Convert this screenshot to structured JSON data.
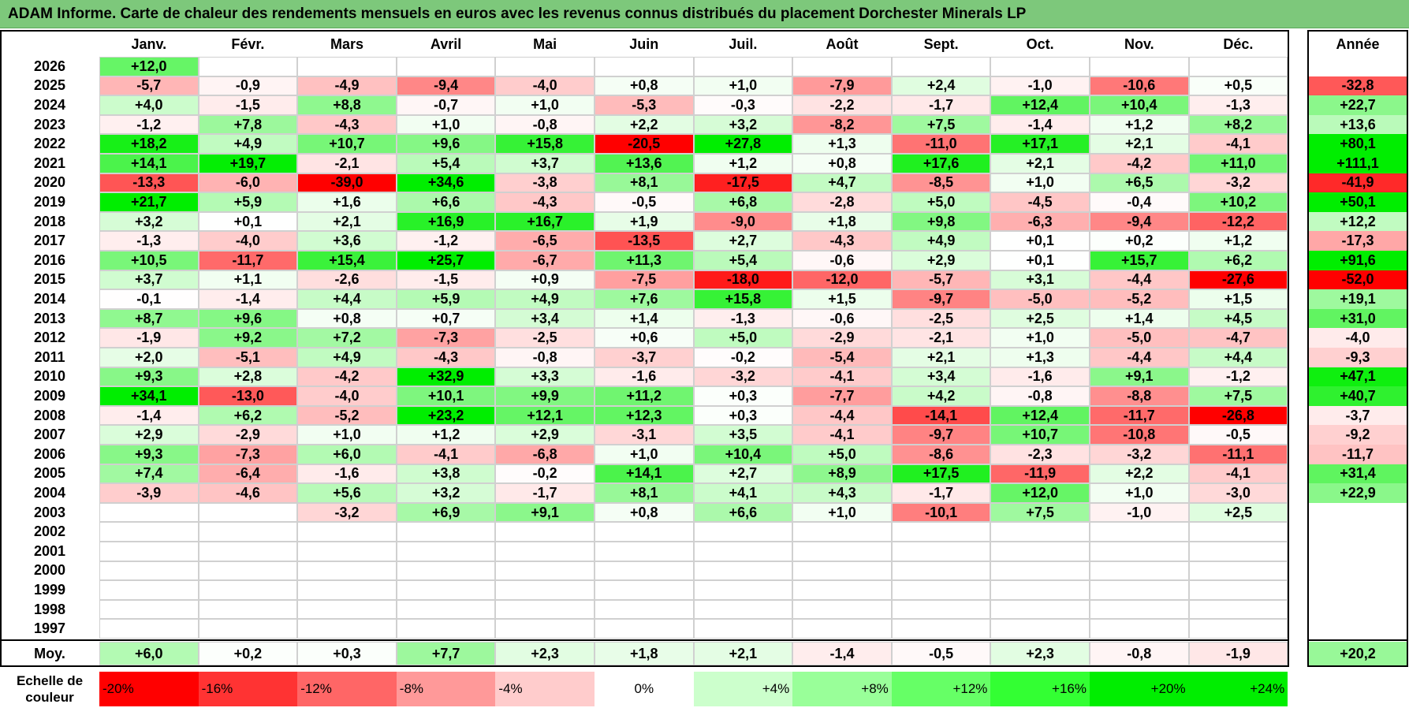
{
  "title": "ADAM Informe. Carte de chaleur des rendements mensuels en euros avec les revenus connus distribués du placement Dorchester Minerals LP",
  "chart_data": {
    "type": "heatmap",
    "title": "ADAM Informe. Carte de chaleur des rendements mensuels en euros avec les revenus connus distribués du placement Dorchester Minerals LP",
    "columns": [
      "Janv.",
      "Févr.",
      "Mars",
      "Avril",
      "Mai",
      "Juin",
      "Juil.",
      "Août",
      "Sept.",
      "Oct.",
      "Nov.",
      "Déc."
    ],
    "year_column_label": "Année",
    "rows": [
      {
        "year": "2026",
        "values": [
          "+12,0",
          "",
          "",
          "",
          "",
          "",
          "",
          "",
          "",
          "",
          "",
          ""
        ],
        "annual": ""
      },
      {
        "year": "2025",
        "values": [
          "-5,7",
          "-0,9",
          "-4,9",
          "-9,4",
          "-4,0",
          "+0,8",
          "+1,0",
          "-7,9",
          "+2,4",
          "-1,0",
          "-10,6",
          "+0,5"
        ],
        "annual": "-32,8"
      },
      {
        "year": "2024",
        "values": [
          "+4,0",
          "-1,5",
          "+8,8",
          "-0,7",
          "+1,0",
          "-5,3",
          "-0,3",
          "-2,2",
          "-1,7",
          "+12,4",
          "+10,4",
          "-1,3"
        ],
        "annual": "+22,7"
      },
      {
        "year": "2023",
        "values": [
          "-1,2",
          "+7,8",
          "-4,3",
          "+1,0",
          "-0,8",
          "+2,2",
          "+3,2",
          "-8,2",
          "+7,5",
          "-1,4",
          "+1,2",
          "+8,2"
        ],
        "annual": "+13,6"
      },
      {
        "year": "2022",
        "values": [
          "+18,2",
          "+4,9",
          "+10,7",
          "+9,6",
          "+15,8",
          "-20,5",
          "+27,8",
          "+1,3",
          "-11,0",
          "+17,1",
          "+2,1",
          "-4,1"
        ],
        "annual": "+80,1"
      },
      {
        "year": "2021",
        "values": [
          "+14,1",
          "+19,7",
          "-2,1",
          "+5,4",
          "+3,7",
          "+13,6",
          "+1,2",
          "+0,8",
          "+17,6",
          "+2,1",
          "-4,2",
          "+11,0"
        ],
        "annual": "+111,1"
      },
      {
        "year": "2020",
        "values": [
          "-13,3",
          "-6,0",
          "-39,0",
          "+34,6",
          "-3,8",
          "+8,1",
          "-17,5",
          "+4,7",
          "-8,5",
          "+1,0",
          "+6,5",
          "-3,2"
        ],
        "annual": "-41,9"
      },
      {
        "year": "2019",
        "values": [
          "+21,7",
          "+5,9",
          "+1,6",
          "+6,6",
          "-4,3",
          "-0,5",
          "+6,8",
          "-2,8",
          "+5,0",
          "-4,5",
          "-0,4",
          "+10,2"
        ],
        "annual": "+50,1"
      },
      {
        "year": "2018",
        "values": [
          "+3,2",
          "+0,1",
          "+2,1",
          "+16,9",
          "+16,7",
          "+1,9",
          "-9,0",
          "+1,8",
          "+9,8",
          "-6,3",
          "-9,4",
          "-12,2"
        ],
        "annual": "+12,2"
      },
      {
        "year": "2017",
        "values": [
          "-1,3",
          "-4,0",
          "+3,6",
          "-1,2",
          "-6,5",
          "-13,5",
          "+2,7",
          "-4,3",
          "+4,9",
          "+0,1",
          "+0,2",
          "+1,2"
        ],
        "annual": "-17,3"
      },
      {
        "year": "2016",
        "values": [
          "+10,5",
          "-11,7",
          "+15,4",
          "+25,7",
          "-6,7",
          "+11,3",
          "+5,4",
          "-0,6",
          "+2,9",
          "+0,1",
          "+15,7",
          "+6,2"
        ],
        "annual": "+91,6"
      },
      {
        "year": "2015",
        "values": [
          "+3,7",
          "+1,1",
          "-2,6",
          "-1,5",
          "+0,9",
          "-7,5",
          "-18,0",
          "-12,0",
          "-5,7",
          "+3,1",
          "-4,4",
          "-27,6"
        ],
        "annual": "-52,0"
      },
      {
        "year": "2014",
        "values": [
          "-0,1",
          "-1,4",
          "+4,4",
          "+5,9",
          "+4,9",
          "+7,6",
          "+15,8",
          "+1,5",
          "-9,7",
          "-5,0",
          "-5,2",
          "+1,5"
        ],
        "annual": "+19,1"
      },
      {
        "year": "2013",
        "values": [
          "+8,7",
          "+9,6",
          "+0,8",
          "+0,7",
          "+3,4",
          "+1,4",
          "-1,3",
          "-0,6",
          "-2,5",
          "+2,5",
          "+1,4",
          "+4,5"
        ],
        "annual": "+31,0"
      },
      {
        "year": "2012",
        "values": [
          "-1,9",
          "+9,2",
          "+7,2",
          "-7,3",
          "-2,5",
          "+0,6",
          "+5,0",
          "-2,9",
          "-2,1",
          "+1,0",
          "-5,0",
          "-4,7"
        ],
        "annual": "-4,0"
      },
      {
        "year": "2011",
        "values": [
          "+2,0",
          "-5,1",
          "+4,9",
          "-4,3",
          "-0,8",
          "-3,7",
          "-0,2",
          "-5,4",
          "+2,1",
          "+1,3",
          "-4,4",
          "+4,4"
        ],
        "annual": "-9,3"
      },
      {
        "year": "2010",
        "values": [
          "+9,3",
          "+2,8",
          "-4,2",
          "+32,9",
          "+3,3",
          "-1,6",
          "-3,2",
          "-4,1",
          "+3,4",
          "-1,6",
          "+9,1",
          "-1,2"
        ],
        "annual": "+47,1"
      },
      {
        "year": "2009",
        "values": [
          "+34,1",
          "-13,0",
          "-4,0",
          "+10,1",
          "+9,9",
          "+11,2",
          "+0,3",
          "-7,7",
          "+4,2",
          "-0,8",
          "-8,8",
          "+7,5"
        ],
        "annual": "+40,7"
      },
      {
        "year": "2008",
        "values": [
          "-1,4",
          "+6,2",
          "-5,2",
          "+23,2",
          "+12,1",
          "+12,3",
          "+0,3",
          "-4,4",
          "-14,1",
          "+12,4",
          "-11,7",
          "-26,8"
        ],
        "annual": "-3,7"
      },
      {
        "year": "2007",
        "values": [
          "+2,9",
          "-2,9",
          "+1,0",
          "+1,2",
          "+2,9",
          "-3,1",
          "+3,5",
          "-4,1",
          "-9,7",
          "+10,7",
          "-10,8",
          "-0,5"
        ],
        "annual": "-9,2"
      },
      {
        "year": "2006",
        "values": [
          "+9,3",
          "-7,3",
          "+6,0",
          "-4,1",
          "-6,8",
          "+1,0",
          "+10,4",
          "+5,0",
          "-8,6",
          "-2,3",
          "-3,2",
          "-11,1"
        ],
        "annual": "-11,7"
      },
      {
        "year": "2005",
        "values": [
          "+7,4",
          "-6,4",
          "-1,6",
          "+3,8",
          "-0,2",
          "+14,1",
          "+2,7",
          "+8,9",
          "+17,5",
          "-11,9",
          "+2,2",
          "-4,1"
        ],
        "annual": "+31,4"
      },
      {
        "year": "2004",
        "values": [
          "-3,9",
          "-4,6",
          "+5,6",
          "+3,2",
          "-1,7",
          "+8,1",
          "+4,1",
          "+4,3",
          "-1,7",
          "+12,0",
          "+1,0",
          "-3,0"
        ],
        "annual": "+22,9"
      },
      {
        "year": "2003",
        "values": [
          "",
          "",
          "-3,2",
          "+6,9",
          "+9,1",
          "+0,8",
          "+6,6",
          "+1,0",
          "-10,1",
          "+7,5",
          "-1,0",
          "+2,5"
        ],
        "annual": ""
      },
      {
        "year": "2002",
        "values": [
          "",
          "",
          "",
          "",
          "",
          "",
          "",
          "",
          "",
          "",
          "",
          ""
        ],
        "annual": ""
      },
      {
        "year": "2001",
        "values": [
          "",
          "",
          "",
          "",
          "",
          "",
          "",
          "",
          "",
          "",
          "",
          ""
        ],
        "annual": ""
      },
      {
        "year": "2000",
        "values": [
          "",
          "",
          "",
          "",
          "",
          "",
          "",
          "",
          "",
          "",
          "",
          ""
        ],
        "annual": ""
      },
      {
        "year": "1999",
        "values": [
          "",
          "",
          "",
          "",
          "",
          "",
          "",
          "",
          "",
          "",
          "",
          ""
        ],
        "annual": ""
      },
      {
        "year": "1998",
        "values": [
          "",
          "",
          "",
          "",
          "",
          "",
          "",
          "",
          "",
          "",
          "",
          ""
        ],
        "annual": ""
      },
      {
        "year": "1997",
        "values": [
          "",
          "",
          "",
          "",
          "",
          "",
          "",
          "",
          "",
          "",
          "",
          ""
        ],
        "annual": ""
      }
    ],
    "average": {
      "label": "Moy.",
      "values": [
        "+6,0",
        "+0,2",
        "+0,3",
        "+7,7",
        "+2,3",
        "+1,8",
        "+2,1",
        "-1,4",
        "-0,5",
        "+2,3",
        "-0,8",
        "-1,9"
      ],
      "annual": "+20,2"
    },
    "color_scale": {
      "label": "Echelle de couleur",
      "steps": [
        {
          "text": "-20%",
          "value": -20,
          "color": "#ff0000"
        },
        {
          "text": "-16%",
          "value": -16,
          "color": "#ff3333"
        },
        {
          "text": "-12%",
          "value": -12,
          "color": "#ff6666"
        },
        {
          "text": "-8%",
          "value": -8,
          "color": "#ff9999"
        },
        {
          "text": "-4%",
          "value": -4,
          "color": "#ffcccc"
        },
        {
          "text": "0%",
          "value": 0,
          "color": "#ffffff"
        },
        {
          "text": "+4%",
          "value": 4,
          "color": "#ccffcc"
        },
        {
          "text": "+8%",
          "value": 8,
          "color": "#99ff99"
        },
        {
          "text": "+12%",
          "value": 12,
          "color": "#66ff66"
        },
        {
          "text": "+16%",
          "value": 16,
          "color": "#33ff33"
        },
        {
          "text": "+20%",
          "value": 20,
          "color": "#00ee00"
        },
        {
          "text": "+24%",
          "value": 24,
          "color": "#00ee00"
        }
      ]
    }
  }
}
